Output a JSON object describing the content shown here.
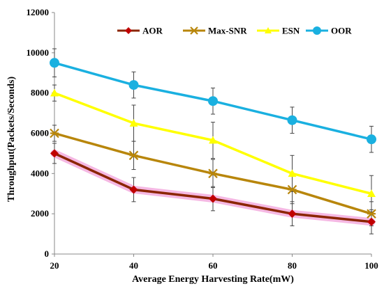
{
  "chart_data": {
    "type": "line",
    "title": "",
    "xlabel": "Average Energy Harvesting Rate(mW)",
    "ylabel": "Throughput(Packets/Seconds)",
    "x": [
      20,
      40,
      60,
      80,
      100
    ],
    "x_ticks": [
      "20",
      "40",
      "60",
      "80",
      "100"
    ],
    "xlim": [
      20,
      100
    ],
    "ylim": [
      0,
      12000
    ],
    "y_ticks": [
      "0",
      "2000",
      "4000",
      "6000",
      "8000",
      "10000",
      "12000"
    ],
    "grid": false,
    "legend_position": "top",
    "series": [
      {
        "name": "AOR",
        "color": "#c00000",
        "line_color": "#8b2500",
        "marker": "diamond",
        "values": [
          5000,
          3200,
          2750,
          2000,
          1600
        ],
        "errors": [
          500,
          600,
          600,
          600,
          600
        ]
      },
      {
        "name": "Max-SNR",
        "color": "#b8860b",
        "line_color": "#b8860b",
        "marker": "star",
        "values": [
          6000,
          4900,
          4000,
          3200,
          2000
        ],
        "errors": [
          400,
          700,
          700,
          700,
          600
        ]
      },
      {
        "name": "ESN",
        "color": "#ffff00",
        "line_color": "#ffff00",
        "marker": "triangle",
        "values": [
          8000,
          6500,
          5650,
          4000,
          3000
        ],
        "errors": [
          400,
          900,
          900,
          900,
          900
        ]
      },
      {
        "name": "OOR",
        "color": "#1ab0e0",
        "line_color": "#1ab0e0",
        "marker": "circle",
        "values": [
          9500,
          8400,
          7600,
          6650,
          5700
        ],
        "errors": [
          700,
          650,
          650,
          650,
          650
        ]
      }
    ]
  }
}
